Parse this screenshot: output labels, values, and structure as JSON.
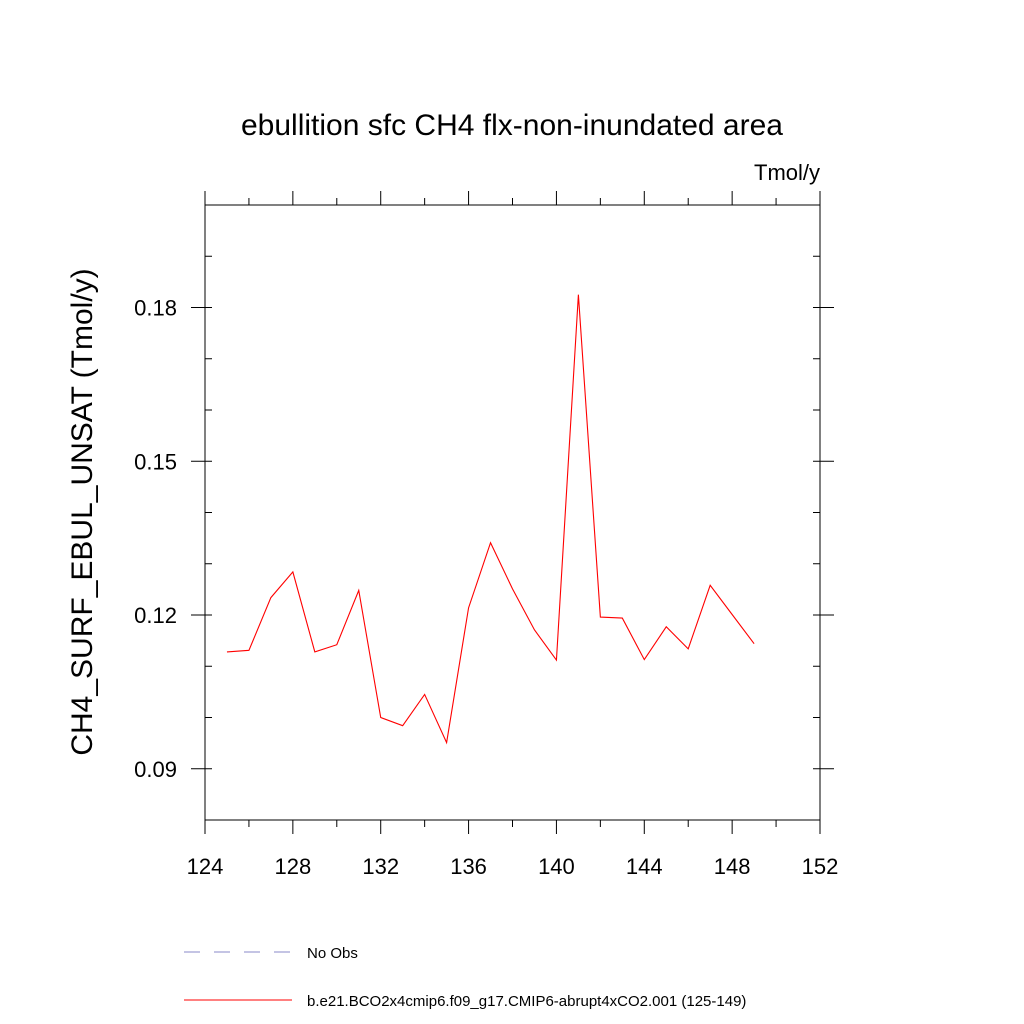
{
  "chart_data": {
    "type": "line",
    "title": "ebullition sfc CH4 flx-non-inundated area",
    "units_label": "Tmol/y",
    "ylabel": "CH4_SURF_EBUL_UNSAT  (Tmol/y)",
    "xlabel": "",
    "xlim": [
      124,
      152
    ],
    "ylim": [
      0.08,
      0.2
    ],
    "x_ticks": [
      124,
      128,
      132,
      136,
      140,
      144,
      148,
      152
    ],
    "x_tick_labels": [
      "124",
      "128",
      "132",
      "136",
      "140",
      "144",
      "148",
      "152"
    ],
    "y_ticks": [
      0.09,
      0.12,
      0.15,
      0.18
    ],
    "y_tick_labels": [
      "0.09",
      "0.12",
      "0.15",
      "0.18"
    ],
    "grid": false,
    "series": [
      {
        "name": "b.e21.BCO2x4cmip6.f09_g17.CMIP6-abrupt4xCO2.001 (125-149)",
        "color": "#ff0000",
        "style": "solid",
        "x": [
          125,
          126,
          127,
          128,
          129,
          130,
          131,
          132,
          133,
          134,
          135,
          136,
          137,
          138,
          139,
          140,
          141,
          142,
          143,
          144,
          145,
          146,
          147,
          148,
          149
        ],
        "values": [
          0.1128,
          0.1131,
          0.1234,
          0.1284,
          0.1128,
          0.1142,
          0.1248,
          0.1,
          0.0984,
          0.1045,
          0.0951,
          0.1214,
          0.1341,
          0.1251,
          0.1171,
          0.1112,
          0.1825,
          0.1196,
          0.1194,
          0.1113,
          0.1177,
          0.1134,
          0.1258,
          0.1201,
          0.1144
        ]
      }
    ],
    "legend": [
      {
        "label": "No Obs",
        "color": "#8a8ac8",
        "style": "dashed"
      },
      {
        "label": "b.e21.BCO2x4cmip6.f09_g17.CMIP6-abrupt4xCO2.001 (125-149)",
        "color": "#ff0000",
        "style": "solid"
      }
    ]
  }
}
